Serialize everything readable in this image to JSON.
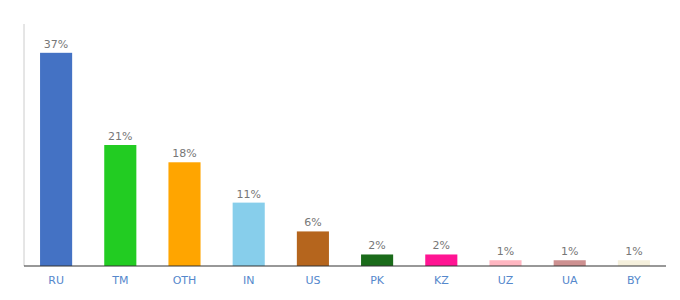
{
  "chart_data": {
    "type": "bar",
    "categories": [
      "RU",
      "TM",
      "OTH",
      "IN",
      "US",
      "PK",
      "KZ",
      "UZ",
      "UA",
      "BY"
    ],
    "values": [
      37,
      21,
      18,
      11,
      6,
      2,
      2,
      1,
      1,
      1
    ],
    "value_labels": [
      "37%",
      "21%",
      "18%",
      "11%",
      "6%",
      "2%",
      "2%",
      "1%",
      "1%",
      "1%"
    ],
    "colors": [
      "#4472c4",
      "#22cc22",
      "#ffa500",
      "#87ceeb",
      "#b5651d",
      "#1a6b1a",
      "#ff1493",
      "#ffb6c1",
      "#cd9090",
      "#f5f0dc"
    ],
    "data_labels": true,
    "ylim": [
      0,
      42
    ],
    "tick_labels": "x",
    "grid": false
  }
}
